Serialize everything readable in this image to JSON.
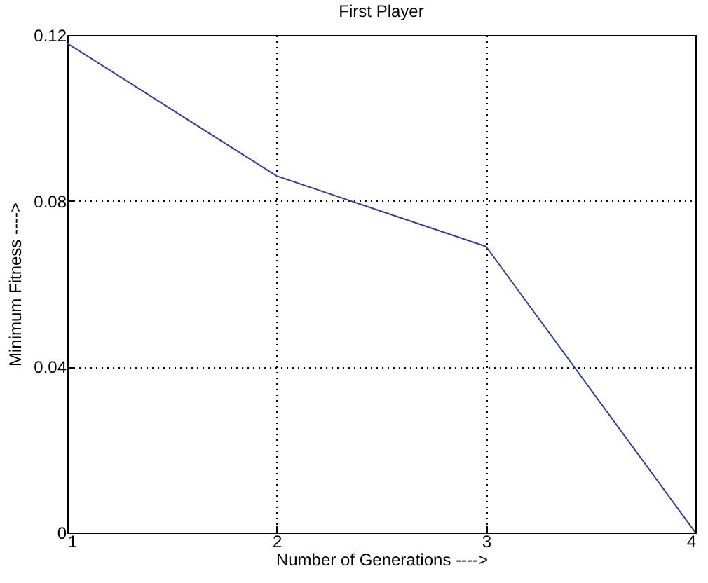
{
  "chart_data": {
    "type": "line",
    "title": "First Player",
    "xlabel": "Number of Generations ---->",
    "ylabel": "Minimum Fitness ---->",
    "x": [
      1,
      2,
      3,
      4
    ],
    "series": [
      {
        "color": "#3a3aa0",
        "values": [
          0.118,
          0.086,
          0.069,
          0
        ]
      }
    ],
    "xlim": [
      1,
      4
    ],
    "xticks": [
      1,
      2,
      3,
      4
    ],
    "ylim": [
      0,
      0.12
    ],
    "yticks": [
      0,
      0.04,
      0.08,
      0.12
    ],
    "grid": true,
    "line_style": "solid"
  }
}
